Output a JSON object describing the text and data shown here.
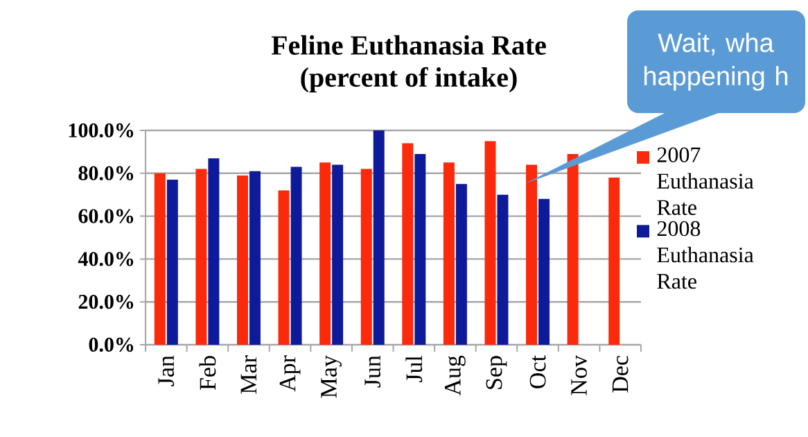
{
  "chart_data": {
    "type": "bar",
    "title": "Feline Euthanasia Rate",
    "subtitle": "(percent of intake)",
    "categories": [
      "Jan",
      "Feb",
      "Mar",
      "Apr",
      "May",
      "Jun",
      "Jul",
      "Aug",
      "Sep",
      "Oct",
      "Nov",
      "Dec"
    ],
    "series": [
      {
        "name": "2007 Euthanasia Rate",
        "color": "#fa2a0a",
        "values": [
          80,
          82,
          79,
          72,
          85,
          82,
          94,
          85,
          95,
          84,
          89,
          78
        ]
      },
      {
        "name": "2008 Euthanasia Rate",
        "color": "#0d1a9a",
        "values": [
          77,
          87,
          81,
          83,
          84,
          100,
          89,
          75,
          70,
          68,
          null,
          null
        ]
      }
    ],
    "ylim": [
      0,
      100
    ],
    "yticks": [
      {
        "value": 0,
        "label": "0.0%"
      },
      {
        "value": 20,
        "label": "20.0%"
      },
      {
        "value": 40,
        "label": "40.0%"
      },
      {
        "value": 60,
        "label": "60.0%"
      },
      {
        "value": 80,
        "label": "80.0%"
      },
      {
        "value": 100,
        "label": "100.0%"
      }
    ],
    "grid": "y",
    "legend": "right",
    "annotations": [
      "Wait, wha happening h"
    ]
  }
}
